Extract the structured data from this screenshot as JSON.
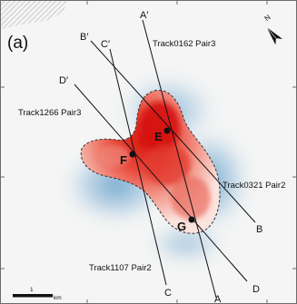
{
  "panel_label": "(a)",
  "north_label": "N",
  "scale": {
    "tick_value": "1",
    "unit": "km"
  },
  "tracks": [
    {
      "label": "Track0162 Pair3",
      "line_start": "A",
      "line_end": "A′"
    },
    {
      "label": "Track0321 Pair2",
      "line_start": "B",
      "line_end": "B′"
    },
    {
      "label": "Track1107 Pair2",
      "line_start": "C",
      "line_end": "C′"
    },
    {
      "label": "Track1266 Pair3",
      "line_start": "D",
      "line_end": "D′"
    }
  ],
  "points": [
    "E",
    "F",
    "G"
  ],
  "colors": {
    "uplift": "#e0251c",
    "subsidence": "#4a8fc2",
    "outline": "#333333",
    "frame": "#6b6b6b"
  }
}
